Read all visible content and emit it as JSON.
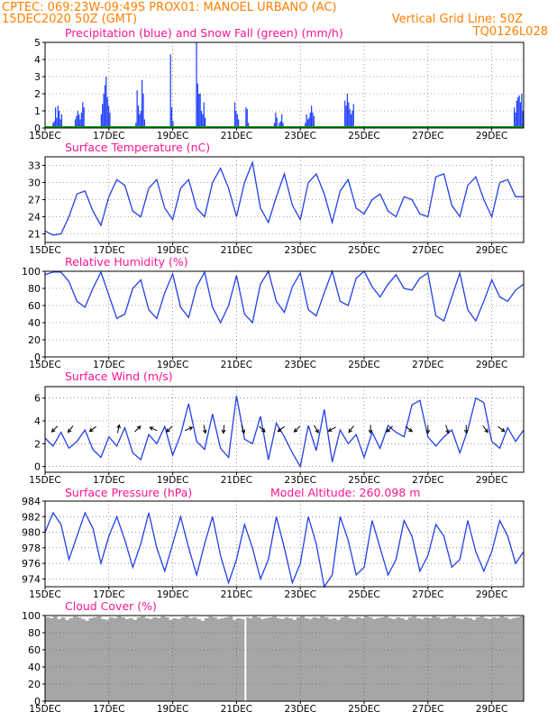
{
  "header": {
    "line1_left": "CPTEC:   069:23W-09:49S   PROX01: MANOEL URBANO (AC)",
    "line2_left": "15DEC2020 50Z (GMT)",
    "line2_right": "Vertical Grid Line: 50Z",
    "line3_right": "TQ0126L028"
  },
  "colors": {
    "header": "#ff7f00",
    "titles": "#ff1493",
    "precipitation": "#1f3fff",
    "snowfall": "#00a000",
    "series": "#2240e8",
    "wind_arrows": "#000000",
    "cloud": "#a6a6a6"
  },
  "x_axis": {
    "start_date": "15DEC2020",
    "end_date": "30DEC2020",
    "tick_labels": [
      "15DEC",
      "17DEC",
      "19DEC",
      "21DEC",
      "23DEC",
      "25DEC",
      "27DEC",
      "29DEC"
    ],
    "tick_days": [
      0,
      2,
      4,
      6,
      8,
      10,
      12,
      14
    ],
    "range_days": [
      0,
      15
    ]
  },
  "chart_data": [
    {
      "id": "precip",
      "type": "bar",
      "title": "Precipitation (blue) and Snow Fall (green) (mm/h)",
      "ylim": [
        0,
        5
      ],
      "yticks": [
        0,
        1,
        2,
        3,
        4,
        5
      ],
      "grid": true,
      "series": [
        {
          "name": "Precipitation",
          "values": [
            0.0,
            0.0,
            0.0,
            0.0,
            0.0,
            0.0,
            0.3,
            0.4,
            1.2,
            0.6,
            1.3,
            1.0,
            0.5,
            0.8,
            0.0,
            0.0,
            0.0,
            0.0,
            0.0,
            0.0,
            0.0,
            0.0,
            0.0,
            0.0,
            0.5,
            0.7,
            1.0,
            0.8,
            0.5,
            0.9,
            1.5,
            1.2,
            0.0,
            0.0,
            0.0,
            0.0,
            0.0,
            0.0,
            0.0,
            0.0,
            0.0,
            0.0,
            0.0,
            0.0,
            0.0,
            0.8,
            1.4,
            2.0,
            2.5,
            3.0,
            1.8,
            1.3,
            0.9,
            0.0,
            0.0,
            0.0,
            0.0,
            0.0,
            0.0,
            0.0,
            0.0,
            0.0,
            0.0,
            0.0,
            0.0,
            0.0,
            0.0,
            0.0,
            0.0,
            0.0,
            0.0,
            0.0,
            0.0,
            0.3,
            2.2,
            1.3,
            0.8,
            1.0,
            2.8,
            2.0,
            0.5,
            0.0,
            0.0,
            0.0,
            0.0,
            0.0,
            0.0,
            0.0,
            0.0,
            0.0,
            0.0,
            0.0,
            0.0,
            0.0,
            0.0,
            0.0,
            0.0,
            0.0,
            0.0,
            0.0,
            0.0,
            4.3,
            1.2,
            0.4,
            0.0,
            0.0,
            0.0,
            0.0,
            0.0,
            0.0,
            0.0,
            0.0,
            0.0,
            0.0,
            0.0,
            0.0,
            0.0,
            0.0,
            0.0,
            0.0,
            0.0,
            0.0,
            5.0,
            2.6,
            2.0,
            2.0,
            1.0,
            0.8,
            1.5,
            0.6,
            0.0,
            0.0,
            0.0,
            0.0,
            0.0,
            0.0,
            0.0,
            0.0,
            0.0,
            0.0,
            0.0,
            0.0,
            0.0,
            0.0,
            0.0,
            0.0,
            0.0,
            0.0,
            0.0,
            0.0,
            0.0,
            0.0,
            0.0,
            1.5,
            1.0,
            0.8,
            0.5,
            0.0,
            0.0,
            0.0,
            0.0,
            0.0,
            1.2,
            1.1,
            0.3,
            0.0,
            0.0,
            0.0,
            0.0,
            0.0,
            0.0,
            0.0,
            0.0,
            0.0,
            0.0,
            0.0,
            0.0,
            0.0,
            0.0,
            0.0,
            0.0,
            0.0,
            0.0,
            0.0,
            0.0,
            0.3,
            0.9,
            0.6,
            0.0,
            0.3,
            0.4,
            0.8,
            0.3,
            0.0,
            0.0,
            0.0,
            0.0,
            0.0,
            0.0,
            0.0,
            0.0,
            0.0,
            0.0,
            0.0,
            0.0,
            0.0,
            0.0,
            0.0,
            0.0,
            0.0,
            0.3,
            0.8,
            0.5,
            0.6,
            0.9,
            1.3,
            0.9,
            0.7,
            0.0,
            0.0,
            0.0,
            0.0,
            0.0,
            0.0,
            0.0,
            0.0,
            0.0,
            0.0,
            0.0,
            0.0,
            0.0,
            0.0,
            0.0,
            0.0,
            0.0,
            0.0,
            0.0,
            0.0,
            0.0,
            0.0,
            0.0,
            0.0,
            1.6,
            1.3,
            2.0,
            1.5,
            1.1,
            0.8,
            1.0,
            1.4,
            0.0,
            0.0,
            0.0,
            0.0,
            0.0,
            0.0,
            0.0,
            0.0,
            0.0,
            0.0,
            0.0,
            0.0,
            0.0,
            0.0,
            0.0,
            0.0,
            0.0,
            0.0,
            0.0,
            0.0,
            0.0,
            0.0,
            0.0,
            0.0,
            0.0,
            0.0,
            0.0,
            0.0,
            0.0,
            0.0,
            0.0,
            0.0,
            0.0,
            0.0,
            0.0,
            0.0,
            0.0,
            0.0,
            0.0,
            0.0,
            0.0,
            0.0,
            0.0,
            0.0,
            0.0,
            0.0,
            0.0,
            0.0,
            0.0,
            0.0,
            0.0,
            0.0,
            0.0,
            0.0,
            0.0,
            0.0,
            0.0,
            0.0,
            0.0,
            0.0,
            0.0,
            0.0,
            0.0,
            0.0,
            0.0,
            0.0,
            0.0,
            0.0,
            0.0,
            0.0,
            0.0,
            0.0,
            0.0,
            0.0,
            0.0,
            0.0,
            0.0,
            0.0,
            0.0,
            0.0,
            0.0,
            0.0,
            0.0,
            0.0,
            0.0,
            0.0,
            0.0,
            0.0,
            0.0,
            0.0,
            0.0,
            0.0,
            0.0,
            0.0,
            0.0,
            0.0,
            0.0,
            0.0,
            0.0,
            0.0,
            0.0,
            0.0,
            0.0,
            0.0,
            0.0,
            0.0,
            0.0,
            0.0,
            0.0,
            0.0,
            0.0,
            0.0,
            0.0,
            0.0,
            0.0,
            0.0,
            0.0,
            0.0,
            0.0,
            0.0,
            0.0,
            0.0,
            0.0,
            0.0,
            0.0,
            0.0,
            0.0,
            0.0,
            0.0,
            1.2,
            0.9,
            1.6,
            1.8,
            1.9,
            1.5,
            2.0,
            1.0
          ]
        },
        {
          "name": "Snow Fall",
          "values": [
            0.0
          ]
        }
      ]
    },
    {
      "id": "temperature",
      "type": "line",
      "title": "Surface Temperature (nC)",
      "ylim": [
        19.5,
        34.5
      ],
      "yticks": [
        21,
        24,
        27,
        30,
        33
      ],
      "grid": true,
      "x_days": [
        0.0,
        0.25,
        0.5,
        0.75,
        1.0,
        1.25,
        1.5,
        1.75,
        2.0,
        2.25,
        2.5,
        2.75,
        3.0,
        3.25,
        3.5,
        3.75,
        4.0,
        4.25,
        4.5,
        4.75,
        5.0,
        5.25,
        5.5,
        5.75,
        6.0,
        6.25,
        6.5,
        6.75,
        7.0,
        7.25,
        7.5,
        7.75,
        8.0,
        8.25,
        8.5,
        8.75,
        9.0,
        9.25,
        9.5,
        9.75,
        10.0,
        10.25,
        10.5,
        10.75,
        11.0,
        11.25,
        11.5,
        11.75,
        12.0,
        12.25,
        12.5,
        12.75,
        13.0,
        13.25,
        13.5,
        13.75,
        14.0,
        14.25,
        14.5,
        14.75,
        15.0
      ],
      "values": [
        21.5,
        20.8,
        21.0,
        24.0,
        28.0,
        28.5,
        25.0,
        22.5,
        27.5,
        30.5,
        29.5,
        25.0,
        24.0,
        29.0,
        30.5,
        25.5,
        23.5,
        29.0,
        30.5,
        25.5,
        24.0,
        30.0,
        32.5,
        29.0,
        24.0,
        30.0,
        33.5,
        25.5,
        23.0,
        27.5,
        31.5,
        26.0,
        23.5,
        30.0,
        31.5,
        28.0,
        23.0,
        28.5,
        30.5,
        25.5,
        24.5,
        27.0,
        28.0,
        25.0,
        24.0,
        27.5,
        27.0,
        24.5,
        24.0,
        31.0,
        31.5,
        26.0,
        24.0,
        29.5,
        31.0,
        27.0,
        24.0,
        30.0,
        30.5,
        27.5,
        27.5
      ]
    },
    {
      "id": "humidity",
      "type": "line",
      "title": "Relative Humidity (%)",
      "ylim": [
        0,
        100
      ],
      "yticks": [
        0,
        20,
        40,
        60,
        80,
        100
      ],
      "grid": true,
      "x_days": [
        0.0,
        0.25,
        0.5,
        0.75,
        1.0,
        1.25,
        1.5,
        1.75,
        2.0,
        2.25,
        2.5,
        2.75,
        3.0,
        3.25,
        3.5,
        3.75,
        4.0,
        4.25,
        4.5,
        4.75,
        5.0,
        5.25,
        5.5,
        5.75,
        6.0,
        6.25,
        6.5,
        6.75,
        7.0,
        7.25,
        7.5,
        7.75,
        8.0,
        8.25,
        8.5,
        8.75,
        9.0,
        9.25,
        9.5,
        9.75,
        10.0,
        10.25,
        10.5,
        10.75,
        11.0,
        11.25,
        11.5,
        11.75,
        12.0,
        12.25,
        12.5,
        12.75,
        13.0,
        13.25,
        13.5,
        13.75,
        14.0,
        14.25,
        14.5,
        14.75,
        15.0
      ],
      "values": [
        96,
        99,
        99,
        88,
        65,
        58,
        80,
        99,
        72,
        45,
        50,
        80,
        90,
        55,
        45,
        75,
        97,
        58,
        46,
        82,
        99,
        58,
        40,
        60,
        95,
        50,
        40,
        85,
        100,
        65,
        52,
        82,
        98,
        55,
        48,
        75,
        100,
        65,
        60,
        92,
        100,
        82,
        70,
        85,
        96,
        80,
        78,
        92,
        98,
        48,
        42,
        70,
        98,
        55,
        42,
        65,
        90,
        70,
        65,
        78,
        85
      ]
    },
    {
      "id": "wind",
      "type": "line",
      "title": "Surface Wind (m/s)",
      "ylim": [
        -0.5,
        7.0
      ],
      "yticks": [
        0,
        2,
        4,
        6
      ],
      "grid": true,
      "x_days": [
        0.0,
        0.25,
        0.5,
        0.75,
        1.0,
        1.25,
        1.5,
        1.75,
        2.0,
        2.25,
        2.5,
        2.75,
        3.0,
        3.25,
        3.5,
        3.75,
        4.0,
        4.25,
        4.5,
        4.75,
        5.0,
        5.25,
        5.5,
        5.75,
        6.0,
        6.25,
        6.5,
        6.75,
        7.0,
        7.25,
        7.5,
        7.75,
        8.0,
        8.25,
        8.5,
        8.75,
        9.0,
        9.25,
        9.5,
        9.75,
        10.0,
        10.25,
        10.5,
        10.75,
        11.0,
        11.25,
        11.5,
        11.75,
        12.0,
        12.25,
        12.5,
        12.75,
        13.0,
        13.25,
        13.5,
        13.75,
        14.0,
        14.25,
        14.5,
        14.75,
        15.0
      ],
      "values": [
        2.5,
        1.8,
        3.0,
        1.6,
        2.2,
        3.2,
        1.5,
        0.8,
        2.6,
        1.8,
        3.4,
        1.2,
        0.6,
        2.8,
        2.0,
        3.5,
        1.0,
        2.8,
        5.5,
        2.2,
        1.5,
        4.6,
        1.6,
        0.8,
        6.2,
        2.4,
        2.0,
        4.4,
        0.6,
        3.8,
        2.6,
        1.2,
        0.0,
        3.6,
        1.4,
        5.0,
        0.4,
        3.2,
        2.0,
        2.8,
        0.8,
        3.0,
        1.6,
        3.6,
        3.0,
        2.6,
        5.4,
        5.8,
        2.6,
        1.8,
        2.6,
        3.2,
        1.2,
        3.2,
        6.0,
        5.6,
        2.2,
        1.6,
        3.4,
        2.2,
        3.2
      ],
      "arrows": [
        {
          "day": 0.3,
          "u": -0.7,
          "v": -0.7
        },
        {
          "day": 0.8,
          "u": -0.6,
          "v": -0.8
        },
        {
          "day": 1.5,
          "u": -0.8,
          "v": -0.6
        },
        {
          "day": 2.3,
          "u": 0.2,
          "v": 1.0
        },
        {
          "day": 2.9,
          "u": 0.7,
          "v": 0.7
        },
        {
          "day": 3.4,
          "u": -0.9,
          "v": 0.4
        },
        {
          "day": 3.9,
          "u": -0.7,
          "v": -0.7
        },
        {
          "day": 4.5,
          "u": 0.9,
          "v": 0.4
        },
        {
          "day": 5.0,
          "u": 0.2,
          "v": -1.0
        },
        {
          "day": 5.6,
          "u": -0.1,
          "v": -1.0
        },
        {
          "day": 6.2,
          "u": 0.3,
          "v": -1.0
        },
        {
          "day": 6.8,
          "u": 0.7,
          "v": -0.7
        },
        {
          "day": 7.4,
          "u": -0.8,
          "v": -0.6
        },
        {
          "day": 7.9,
          "u": -0.7,
          "v": -0.7
        },
        {
          "day": 8.5,
          "u": 0.5,
          "v": -0.9
        },
        {
          "day": 9.0,
          "u": -0.9,
          "v": -0.5
        },
        {
          "day": 9.6,
          "u": -0.6,
          "v": -0.8
        },
        {
          "day": 10.2,
          "u": 0.0,
          "v": -1.0
        },
        {
          "day": 10.8,
          "u": -0.7,
          "v": -0.7
        },
        {
          "day": 11.4,
          "u": 0.8,
          "v": -0.6
        },
        {
          "day": 12.0,
          "u": 0.0,
          "v": -1.0
        },
        {
          "day": 12.6,
          "u": 0.3,
          "v": -1.0
        },
        {
          "day": 13.2,
          "u": 0.0,
          "v": -1.0
        },
        {
          "day": 13.8,
          "u": 0.6,
          "v": -0.8
        },
        {
          "day": 14.3,
          "u": 0.8,
          "v": -0.6
        }
      ]
    },
    {
      "id": "pressure",
      "type": "line",
      "title": "Surface Pressure (hPa)",
      "annotation": "Model Altitude: 260.098  m",
      "ylim": [
        973,
        984
      ],
      "yticks": [
        974,
        976,
        978,
        980,
        982,
        984
      ],
      "grid": true,
      "x_days": [
        0.0,
        0.25,
        0.5,
        0.75,
        1.0,
        1.25,
        1.5,
        1.75,
        2.0,
        2.25,
        2.5,
        2.75,
        3.0,
        3.25,
        3.5,
        3.75,
        4.0,
        4.25,
        4.5,
        4.75,
        5.0,
        5.25,
        5.5,
        5.75,
        6.0,
        6.25,
        6.5,
        6.75,
        7.0,
        7.25,
        7.5,
        7.75,
        8.0,
        8.25,
        8.5,
        8.75,
        9.0,
        9.25,
        9.5,
        9.75,
        10.0,
        10.25,
        10.5,
        10.75,
        11.0,
        11.25,
        11.5,
        11.75,
        12.0,
        12.25,
        12.5,
        12.75,
        13.0,
        13.25,
        13.5,
        13.75,
        14.0,
        14.25,
        14.5,
        14.75,
        15.0
      ],
      "values": [
        980.0,
        982.5,
        981.0,
        976.5,
        979.5,
        982.5,
        980.5,
        976.0,
        979.5,
        982.0,
        979.0,
        975.5,
        978.5,
        982.5,
        978.0,
        975.0,
        978.5,
        982.0,
        978.0,
        974.5,
        978.5,
        982.0,
        977.0,
        973.5,
        976.5,
        981.0,
        978.0,
        974.0,
        976.5,
        982.0,
        978.0,
        973.5,
        976.0,
        982.0,
        978.5,
        973.0,
        974.5,
        982.0,
        979.0,
        974.5,
        975.5,
        981.5,
        978.0,
        974.5,
        976.5,
        981.5,
        979.5,
        975.0,
        977.0,
        981.0,
        979.5,
        975.5,
        976.5,
        981.5,
        977.5,
        975.0,
        977.5,
        981.5,
        979.5,
        976.0,
        977.5
      ]
    },
    {
      "id": "cloud",
      "type": "area",
      "title": "Cloud Cover (%)",
      "ylim": [
        0,
        100
      ],
      "yticks": [
        0,
        20,
        40,
        60,
        80,
        100
      ],
      "grid": true,
      "gap_day": 6.28,
      "values": [
        98,
        97,
        99,
        96,
        98,
        95,
        97,
        99,
        98,
        96,
        94,
        97,
        98,
        99,
        96,
        95,
        98,
        97,
        99,
        98,
        96,
        97,
        95,
        98,
        99,
        97,
        96,
        98,
        97,
        99,
        98,
        95,
        97,
        96,
        98,
        99,
        97,
        98,
        96,
        94,
        97,
        99,
        98,
        96,
        97,
        98,
        99,
        95,
        97,
        96,
        98,
        97,
        99,
        98,
        96,
        97,
        98,
        99,
        97,
        96,
        98,
        97,
        95,
        98,
        99,
        97,
        96,
        98,
        97,
        99,
        98,
        96,
        97,
        95,
        98,
        99,
        97,
        96,
        98,
        97,
        99,
        98,
        96,
        97,
        98,
        99,
        97,
        96,
        98,
        97,
        95,
        98,
        99,
        97,
        96,
        98,
        97,
        99,
        98,
        96,
        97,
        98,
        99,
        97,
        96,
        98,
        97,
        95,
        98,
        99,
        97,
        96,
        98,
        97,
        99,
        98,
        96,
        97,
        98,
        99
      ]
    }
  ]
}
